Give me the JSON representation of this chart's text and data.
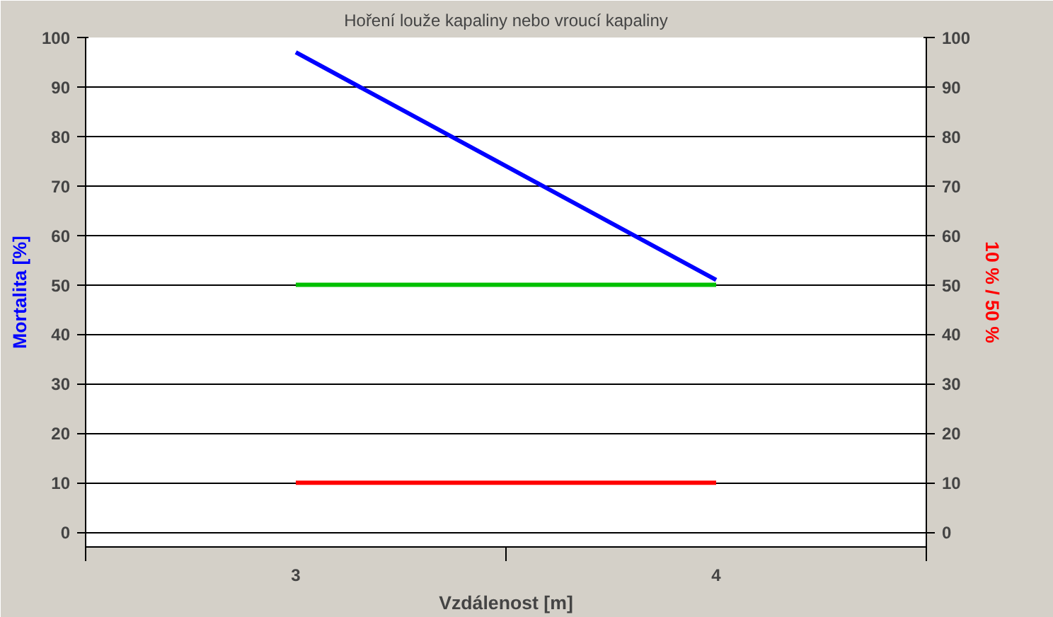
{
  "chart_data": {
    "type": "line",
    "title": "Hoření louže kapaliny nebo vroucí kapaliny",
    "xlabel": "Vzdálenost [m]",
    "ylabel": "Mortalita [%]",
    "y2label": "10 % / 50 %",
    "categories": [
      "3",
      "4"
    ],
    "series": [
      {
        "color": "#0000ff",
        "values": [
          97,
          51
        ]
      },
      {
        "color": "#00c000",
        "values": [
          50,
          50
        ]
      },
      {
        "color": "#ff0000",
        "values": [
          10,
          10
        ]
      }
    ],
    "ylim": [
      -3,
      100
    ],
    "yticks": [
      0,
      10,
      20,
      30,
      40,
      50,
      60,
      70,
      80,
      90,
      100
    ],
    "y2lim": [
      -3,
      100
    ],
    "y2ticks": [
      0,
      10,
      20,
      30,
      40,
      50,
      60,
      70,
      80,
      90,
      100
    ],
    "grid": "y",
    "marker": "none",
    "line_style": "solid"
  }
}
